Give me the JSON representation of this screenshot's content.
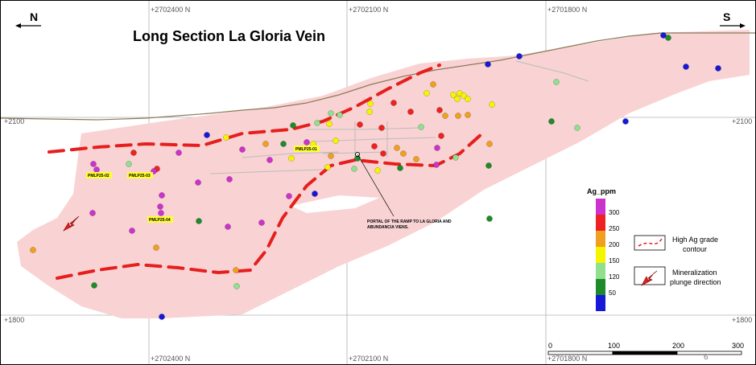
{
  "title": "Long Section La Gloria Vein",
  "north_label": "N",
  "south_label": "S",
  "grid": {
    "top_labels": [
      "+2702400 N",
      "+2702100 N",
      "+2701800 N"
    ],
    "bottom_labels": [
      "+2702400 N",
      "+2702100 N",
      "+2701800 N"
    ],
    "elevation_labels": [
      "+2100",
      "+1800"
    ]
  },
  "drill_hole_tags": [
    "PMLP25-01",
    "PMLP25-02",
    "PMLP25-03",
    "PMLP25-04"
  ],
  "portal_note": [
    "PORTAL OF THE RAMP TO LA GLORIA AND",
    "ABUNDANCIA VIENS."
  ],
  "color_legend": {
    "title": "Ag_ppm",
    "ticks": [
      "300",
      "250",
      "200",
      "150",
      "120",
      "50"
    ],
    "colors": [
      "#cc33cc",
      "#ee2222",
      "#f0a020",
      "#f5f500",
      "#90e090",
      "#1f8a2a",
      "#1818d8"
    ]
  },
  "key": {
    "contour_label": [
      "High Ag grade",
      "contour"
    ],
    "plunge_label": [
      "Mineralization",
      "plunge direction"
    ]
  },
  "scale_bar": {
    "ticks": [
      "0",
      "100",
      "200",
      "300"
    ]
  },
  "page_number": "6",
  "colors": {
    "vein": "#f9d3d3",
    "contour": "#e61e1e",
    "topography": "#8b7a5a"
  }
}
